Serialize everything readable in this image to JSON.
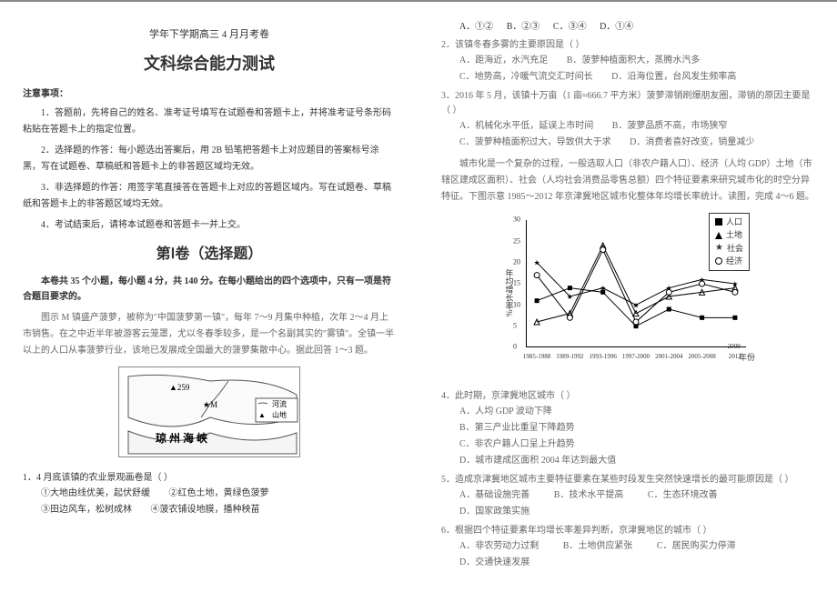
{
  "header": {
    "subtitle": "学年下学期高三 4 月月考卷",
    "title": "文科综合能力测试"
  },
  "notice": {
    "head": "注意事项：",
    "items": [
      "1．答题前，先将自己的姓名、准考证号填写在试题卷和答题卡上，并将准考证号条形码粘贴在答题卡上的指定位置。",
      "2．选择题的作答：每小题选出答案后，用 2B 铅笔把答题卡上对应题目的答案标号涂黑，写在试题卷、草稿纸和答题卡上的非答题区域均无效。",
      "3．非选择题的作答：用签字笔直接答在答题卡上对应的答题区域内。写在试题卷、草稿纸和答题卡上的非答题区域均无效。",
      "4．考试结束后，请将本试题卷和答题卡一并上交。"
    ]
  },
  "part1": {
    "title": "第Ⅰ卷（选择题）",
    "instruct": "本卷共 35 个小题，每小题 4 分，共 140 分。在每小题给出的四个选项中，只有一项是符合题目要求的。"
  },
  "passage1": {
    "text": "图示 M 镇盛产菠萝，被称为\"中国菠萝第一镇\"，每年 7～9 月集中种植，次年 2～4 月上市销售。在之中近半年被游客云笼罩，尤以冬春季较多，是一个名副其实的\"雾镇\"。全镇一半以上的人口从事菠萝行业，该地已发展成全国最大的菠萝集散中心。据此回答 1～3 题。"
  },
  "map": {
    "peak": "▲259",
    "m": "★M",
    "sea": "琼 州 海 峡",
    "legend_river": "河流",
    "legend_mtn": "山地"
  },
  "q1": {
    "stem": "1．4 月底该镇的农业景观画卷是（    ）",
    "opts": [
      "①大地由线优美，起伏舒缓",
      "②红色土地，黄绿色菠萝",
      "③田边风车，松树成林",
      "④菠农铺设地膜，播种秧苗"
    ]
  },
  "q1ans": {
    "A": "A．①②",
    "B": "B．②③",
    "C": "C．③④",
    "D": "D．①④"
  },
  "q2": {
    "stem": "2．该镇冬春多雾的主要原因是（    ）",
    "opts": {
      "A": "A．距海近，水汽充足",
      "B": "B．菠萝种植面积大，蒸腾水汽多",
      "C": "C．地势高，冷暖气流交汇时间长",
      "D": "D．沿海位置，台风发生频率高"
    }
  },
  "q3": {
    "stem": "3．2016 年 5 月，该镇十万亩（1 亩≈666.7 平方米）菠萝滞销刷爆朋友圈，滞销的原因主要是（    ）",
    "opts": {
      "A": "A．机械化水平低，延误上市时间",
      "B": "B．菠萝品质不高，市场狭窄",
      "C": "C．菠萝种植面积过大，导致供大于求",
      "D": "D．消费者喜好改变，销量减少"
    }
  },
  "passage2": {
    "text": "城市化是一个复杂的过程，一般选取人口（非农户籍人口）、经济（人均 GDP）土地（市辖区建成区面积）、社会（人均社会消费品零售总额）四个特征要素来研究城市化的时空分异特征。下图示意 1985～2012 年京津冀地区城市化整体年均增长率统计。读图，完成 4～6 题。"
  },
  "chart": {
    "type": "line",
    "legend": [
      "人口",
      "土地",
      "社会",
      "经济"
    ],
    "legend_markers": [
      "square",
      "triangle",
      "star",
      "circle"
    ],
    "x_categories": [
      "1985-1988",
      "1989-1992",
      "1993-1996",
      "1997-2000",
      "2001-2004",
      "2005-2008",
      "2009-2012"
    ],
    "xlabel": "年份",
    "ylabel": "年均增长率%",
    "ylim": [
      0,
      30
    ],
    "ytick_step": 5,
    "series": {
      "pop": [
        11,
        14,
        13,
        5,
        9,
        7,
        7
      ],
      "land": [
        6,
        8,
        24,
        8,
        12,
        13,
        14
      ],
      "social": [
        20,
        12,
        14,
        10,
        14,
        16,
        15
      ],
      "econ": [
        17,
        7,
        23,
        6,
        13,
        15,
        13
      ]
    },
    "colors": {
      "line": "#000000",
      "bg": "#ffffff"
    },
    "line_width": 1
  },
  "q4": {
    "stem": "4．此时期，京津冀地区城市（    ）",
    "opts": {
      "A": "A．人均 GDP 波动下降",
      "B": "B．第三产业比重呈下降趋势",
      "C": "C．非农户籍人口呈上升趋势",
      "D": "D．城市建成区面积 2004 年达到最大值"
    }
  },
  "q5": {
    "stem": "5．造成京津冀地区城市主要特征要素在某些时段发生突然快速增长的最可能原因是（    ）",
    "opts": {
      "A": "A．基础设施完善",
      "B": "B．技术水平提高",
      "C": "C．生态环境改善",
      "D": "D．国家政策实施"
    }
  },
  "q6": {
    "stem": "6．根据四个特征要素年均增长率差异判断，京津冀地区的城市（    ）",
    "opts": {
      "A": "A．非农劳动力过剩",
      "B": "B．土地供应紧张",
      "C": "C．居民购买力停滞",
      "D": "D．交通快速发展"
    }
  }
}
